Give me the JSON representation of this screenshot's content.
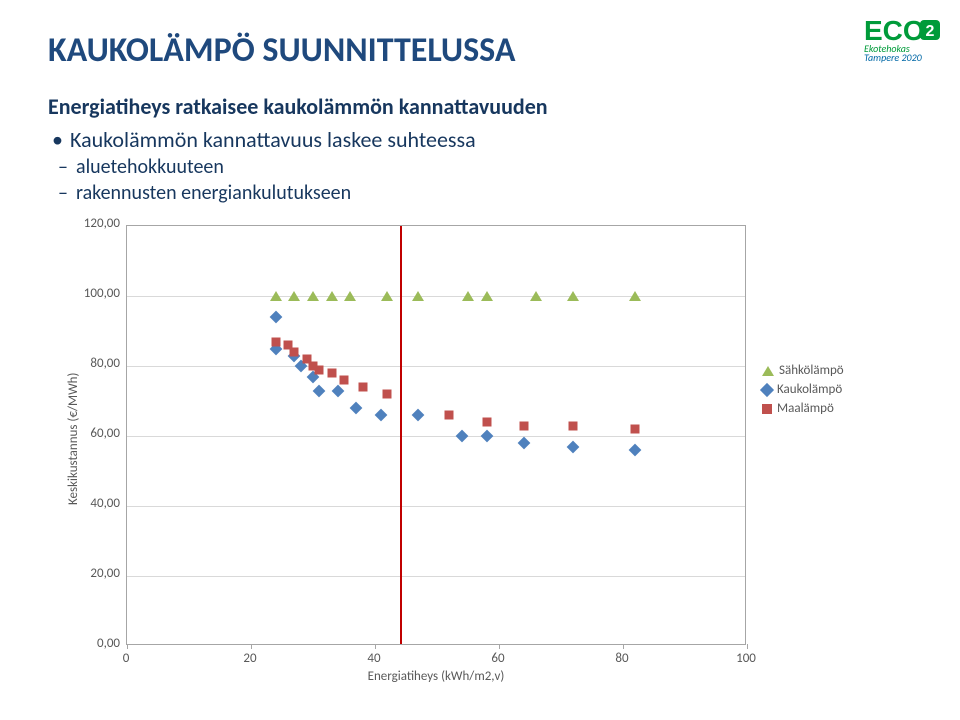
{
  "title": {
    "text": "KAUKOLÄMPÖ SUUNNITTELUSSA",
    "color": "#1f497d",
    "fontsize": 34
  },
  "subtitle": {
    "text": "Energiatiheys ratkaisee kaukolämmön kannattavuuden",
    "color": "#17375e",
    "fontsize": 22
  },
  "bullet1": {
    "text": "Kaukolämmön kannattavuus laskee suhteessa",
    "color": "#17375e",
    "fontsize": 22
  },
  "sub1": {
    "text": "aluetehokkuuteen",
    "color": "#17375e",
    "fontsize": 20
  },
  "sub2": {
    "text": "rakennusten energiankulutukseen",
    "color": "#17375e",
    "fontsize": 20
  },
  "logo": {
    "eco_text": "ECO",
    "two_text": "2",
    "eco_color": "#009b3a",
    "two_bg": "#009b3a",
    "eko_text": "Ekotehokas",
    "eko_color": "#009b3a",
    "tam_text": "Tampere 2020",
    "tam_color": "#0068a6"
  },
  "chart": {
    "type": "scatter",
    "background_color": "#ffffff",
    "border_color": "#a6a6a6",
    "grid_color": "#d9d9d9",
    "tick_color": "#595959",
    "tick_fontsize": 13,
    "ylabel": "Keskikustannus (€/MWh)",
    "ylabel_fontsize": 13,
    "xlabel": "Energiatiheys (kWh/m2,v)",
    "xlabel_fontsize": 13,
    "xlim": [
      0,
      100
    ],
    "xtick_step": 20,
    "ylim": [
      0,
      120
    ],
    "ytick_step": 20,
    "divider": {
      "x": 44,
      "color": "#c00000"
    },
    "legend": {
      "fontsize": 13,
      "items": [
        {
          "label": "Sähkölämpö",
          "shape": "tri",
          "color": "#9bbb59"
        },
        {
          "label": "Kaukolämpö",
          "shape": "dia",
          "color": "#4f81bd"
        },
        {
          "label": "Maalämpö",
          "shape": "sq",
          "color": "#c0504d"
        }
      ]
    },
    "series": [
      {
        "name": "Sähkölämpö",
        "shape": "tri",
        "color": "#9bbb59",
        "points": [
          [
            24,
            100
          ],
          [
            27,
            100
          ],
          [
            30,
            100
          ],
          [
            33,
            100
          ],
          [
            36,
            100
          ],
          [
            42,
            100
          ],
          [
            47,
            100
          ],
          [
            55,
            100
          ],
          [
            58,
            100
          ],
          [
            66,
            100
          ],
          [
            72,
            100
          ],
          [
            82,
            100
          ]
        ]
      },
      {
        "name": "Kaukolämpö",
        "shape": "dia",
        "color": "#4f81bd",
        "points": [
          [
            24,
            94
          ],
          [
            24,
            85
          ],
          [
            27,
            83
          ],
          [
            28,
            80
          ],
          [
            30,
            77
          ],
          [
            31,
            73
          ],
          [
            34,
            73
          ],
          [
            37,
            68
          ],
          [
            41,
            66
          ],
          [
            47,
            66
          ],
          [
            54,
            60
          ],
          [
            58,
            60
          ],
          [
            64,
            58
          ],
          [
            72,
            57
          ],
          [
            82,
            56
          ]
        ]
      },
      {
        "name": "Maalämpö",
        "shape": "sq",
        "color": "#c0504d",
        "points": [
          [
            24,
            87
          ],
          [
            26,
            86
          ],
          [
            27,
            84
          ],
          [
            29,
            82
          ],
          [
            30,
            80
          ],
          [
            31,
            79
          ],
          [
            33,
            78
          ],
          [
            35,
            76
          ],
          [
            38,
            74
          ],
          [
            42,
            72
          ],
          [
            52,
            66
          ],
          [
            58,
            64
          ],
          [
            64,
            63
          ],
          [
            72,
            63
          ],
          [
            82,
            62
          ]
        ]
      }
    ]
  }
}
